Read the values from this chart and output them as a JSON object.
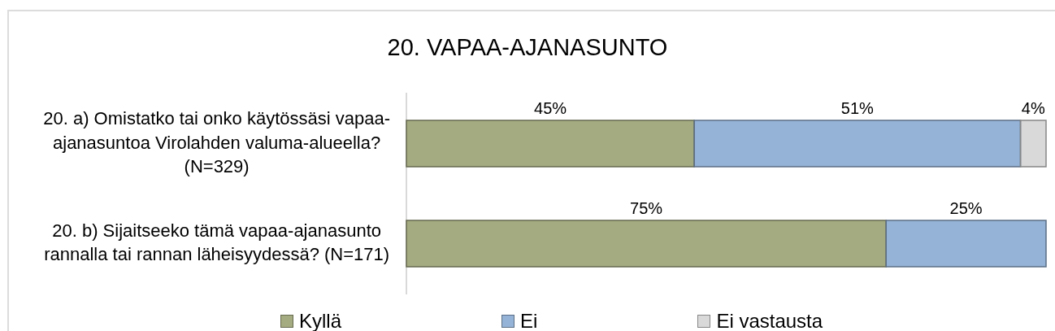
{
  "chart_data": {
    "type": "bar",
    "orientation": "horizontal",
    "stacked": true,
    "title": "20. VAPAA-AJANASUNTO",
    "categories": [
      "20. a) Omistatko tai onko käytössäsi vapaa-ajanasuntoa Virolahden valuma-alueella? (N=329)",
      "20. b) Sijaitseeko tämä vapaa-ajanasunto rannalla tai rannan läheisyydessä? (N=171)"
    ],
    "series": [
      {
        "name": "Kyllä",
        "color": "#a5ab80",
        "values": [
          45,
          75
        ],
        "value_labels": [
          "45%",
          "75%"
        ]
      },
      {
        "name": "Ei",
        "color": "#95b3d7",
        "values": [
          51,
          25
        ],
        "value_labels": [
          "51%",
          "25%"
        ]
      },
      {
        "name": "Ei vastausta",
        "color": "#d9d9d9",
        "values": [
          4,
          null
        ],
        "value_labels": [
          "4%",
          null
        ]
      }
    ],
    "tick_labels": "y",
    "legend": "bottom"
  }
}
